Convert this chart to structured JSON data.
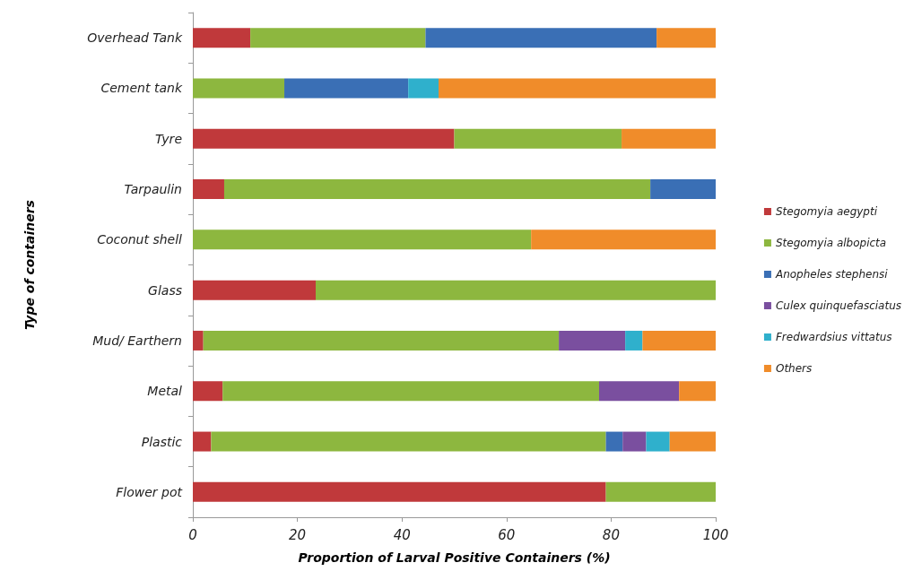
{
  "chart_data": {
    "type": "bar",
    "orientation": "horizontal",
    "stacked": true,
    "xlabel": "Proportion of Larval Positive Containers (%)",
    "ylabel": "Type of containers",
    "categories": [
      "Overhead Tank",
      "Cement tank",
      "Tyre",
      "Tarpaulin",
      "Coconut shell",
      "Glass",
      "Mud/ Earthern",
      "Metal",
      "Plastic",
      "Flower pot"
    ],
    "series": [
      {
        "name": "Stegomyia aegypti",
        "color": "#c0393b",
        "values": [
          11,
          0,
          50,
          6,
          0,
          23.5,
          2,
          5.7,
          3.5,
          79
        ]
      },
      {
        "name": "Stegomyia albopicta",
        "color": "#8db73f",
        "values": [
          33.5,
          17.5,
          32,
          81.5,
          64.7,
          76.5,
          68,
          72,
          75.5,
          21
        ]
      },
      {
        "name": "Anopheles stephensi",
        "color": "#3a6fb5",
        "values": [
          44.2,
          23.7,
          0,
          12.5,
          0,
          0,
          0,
          0,
          3.2,
          0
        ]
      },
      {
        "name": "Culex quinquefasciatus",
        "color": "#7a4f9f",
        "values": [
          0,
          0,
          0,
          0,
          0,
          0,
          12.7,
          15.3,
          4.5,
          0
        ]
      },
      {
        "name": "Fredwardsius vittatus",
        "color": "#2fb0cc",
        "values": [
          0,
          5.8,
          0,
          0,
          0,
          0,
          3.3,
          0,
          4.5,
          0
        ]
      },
      {
        "name": "Others",
        "color": "#f08c2a",
        "values": [
          11.3,
          53,
          18,
          0,
          35.3,
          0,
          14,
          7,
          8.8,
          0
        ]
      }
    ],
    "xlim": [
      0,
      100
    ],
    "xticks": [
      0,
      20,
      40,
      60,
      80,
      100
    ],
    "grid": false,
    "legend": "right"
  }
}
